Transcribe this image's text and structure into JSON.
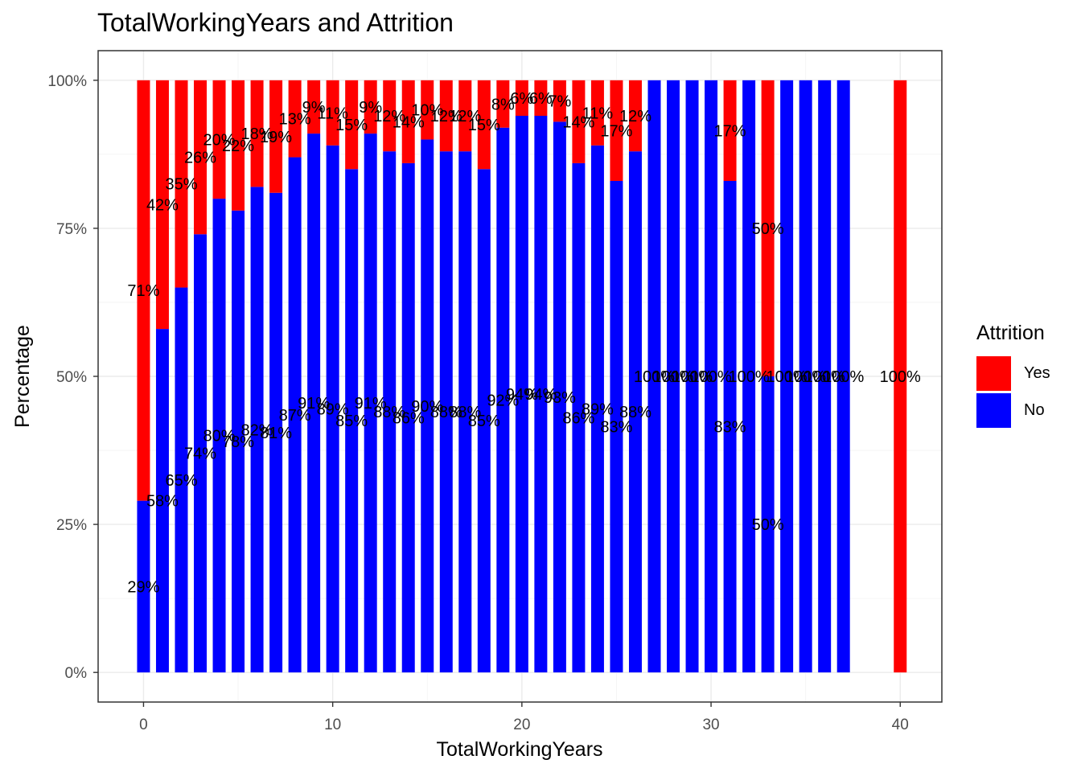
{
  "chart_data": {
    "type": "bar",
    "stacked": "percent",
    "title": "TotalWorkingYears and Attrition",
    "xlabel": "TotalWorkingYears",
    "ylabel": "Percentage",
    "xlim": [
      -2.4,
      42.2
    ],
    "ylim": [
      -0.05,
      1.05
    ],
    "x_ticks": [
      0,
      10,
      20,
      30,
      40
    ],
    "x_tick_labels": [
      "0",
      "10",
      "20",
      "30",
      "40"
    ],
    "y_ticks": [
      0,
      0.25,
      0.5,
      0.75,
      1.0
    ],
    "y_tick_labels": [
      "0%",
      "25%",
      "50%",
      "75%",
      "100%"
    ],
    "grid": true,
    "legend": {
      "title": "Attrition",
      "position": "right",
      "entries": [
        "Yes",
        "No"
      ]
    },
    "colors": {
      "Yes": "#ff0000",
      "No": "#0000ff"
    },
    "x": [
      0,
      1,
      2,
      3,
      4,
      5,
      6,
      7,
      8,
      9,
      10,
      11,
      12,
      13,
      14,
      15,
      16,
      17,
      18,
      19,
      20,
      21,
      22,
      23,
      24,
      25,
      26,
      27,
      28,
      29,
      30,
      31,
      32,
      33,
      34,
      35,
      36,
      37,
      40
    ],
    "series": [
      {
        "name": "No",
        "values": [
          0.29,
          0.58,
          0.65,
          0.74,
          0.8,
          0.78,
          0.82,
          0.81,
          0.87,
          0.91,
          0.89,
          0.85,
          0.91,
          0.88,
          0.86,
          0.9,
          0.88,
          0.88,
          0.85,
          0.92,
          0.94,
          0.94,
          0.93,
          0.86,
          0.89,
          0.83,
          0.88,
          1.0,
          1.0,
          1.0,
          1.0,
          0.83,
          1.0,
          0.5,
          1.0,
          1.0,
          1.0,
          1.0,
          0
        ],
        "labels": [
          "29%",
          "58%",
          "65%",
          "74%",
          "80%",
          "78%",
          "82%",
          "81%",
          "87%",
          "91%",
          "89%",
          "85%",
          "91%",
          "88%",
          "86%",
          "90%",
          "88%",
          "88%",
          "85%",
          "92%",
          "94%",
          "94%",
          "93%",
          "86%",
          "89%",
          "83%",
          "88%",
          "100%",
          "100%",
          "100%",
          "100%",
          "83%",
          "100%",
          "50%",
          "100%",
          "100%",
          "100%",
          "100%",
          ""
        ]
      },
      {
        "name": "Yes",
        "values": [
          0.71,
          0.42,
          0.35,
          0.26,
          0.2,
          0.22,
          0.18,
          0.19,
          0.13,
          0.09,
          0.11,
          0.15,
          0.09,
          0.12,
          0.14,
          0.1,
          0.12,
          0.12,
          0.15,
          0.08,
          0.06,
          0.06,
          0.07,
          0.14,
          0.11,
          0.17,
          0.12,
          0,
          0,
          0,
          0,
          0.17,
          0,
          0.5,
          0,
          0,
          0,
          0,
          1.0
        ],
        "labels": [
          "71%",
          "42%",
          "35%",
          "26%",
          "20%",
          "22%",
          "18%",
          "19%",
          "13%",
          "9%",
          "11%",
          "15%",
          "9%",
          "12%",
          "14%",
          "10%",
          "12%",
          "12%",
          "15%",
          "8%",
          "6%",
          "6%",
          "7%",
          "14%",
          "11%",
          "17%",
          "12%",
          "",
          "",
          "",
          "",
          "17%",
          "",
          "50%",
          "",
          "",
          "",
          "",
          "100%"
        ]
      }
    ]
  }
}
